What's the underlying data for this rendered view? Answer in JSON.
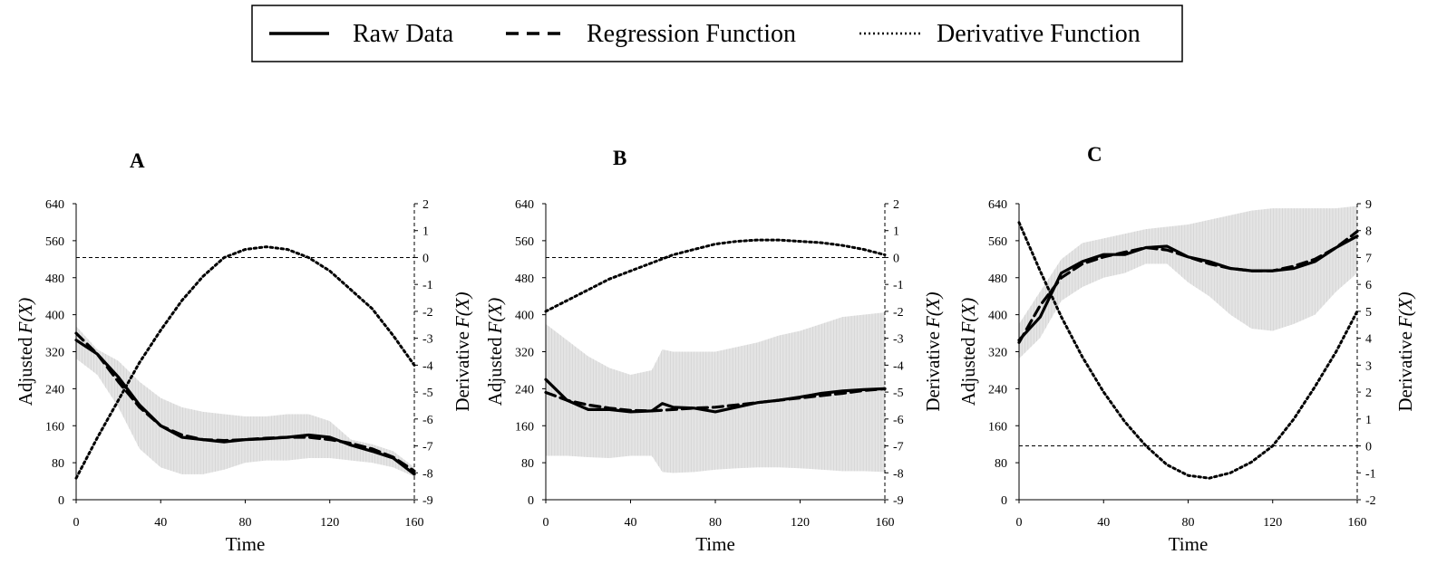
{
  "legend": {
    "entries": [
      {
        "label": "Raw Data",
        "style": "solid"
      },
      {
        "label": "Regression Function",
        "style": "dashed"
      },
      {
        "label": "Derivative Function",
        "style": "dotted"
      }
    ]
  },
  "colors": {
    "line": "#000000",
    "band": "#d4d4d4",
    "axis": "#000000"
  },
  "chart_data": [
    {
      "type": "line",
      "panel_label": "A",
      "xlabel": "Time",
      "ylabel_left": "Adjusted",
      "ylabel_left_fx": "F(X)",
      "ylabel_right": "Derivative",
      "ylabel_right_fx": "F(X)",
      "xlim": [
        0,
        160
      ],
      "ylim_left": [
        0,
        640
      ],
      "ylim_right": [
        -9,
        2
      ],
      "xticks": [
        0,
        40,
        80,
        120,
        160
      ],
      "yticks_left": [
        0,
        80,
        160,
        240,
        320,
        400,
        480,
        560,
        640
      ],
      "yticks_right": [
        -9,
        -8,
        -7,
        -6,
        -5,
        -4,
        -3,
        -2,
        -1,
        0,
        1,
        2
      ],
      "zero_line_right": 0,
      "series": [
        {
          "name": "Raw Data",
          "axis": "left",
          "x": [
            0,
            10,
            20,
            30,
            40,
            50,
            60,
            70,
            80,
            90,
            100,
            110,
            120,
            130,
            140,
            150,
            160
          ],
          "y": [
            345,
            315,
            265,
            205,
            160,
            135,
            130,
            125,
            130,
            132,
            135,
            140,
            135,
            118,
            105,
            90,
            55
          ]
        },
        {
          "name": "Regression Function",
          "axis": "left",
          "x": [
            0,
            10,
            20,
            30,
            40,
            50,
            60,
            70,
            80,
            90,
            100,
            110,
            120,
            130,
            140,
            150,
            160
          ],
          "y": [
            360,
            315,
            255,
            200,
            160,
            140,
            130,
            128,
            130,
            133,
            135,
            135,
            130,
            122,
            110,
            92,
            62
          ]
        },
        {
          "name": "Derivative Function",
          "axis": "right",
          "x": [
            0,
            10,
            20,
            30,
            40,
            50,
            60,
            70,
            80,
            90,
            100,
            110,
            120,
            130,
            140,
            150,
            160
          ],
          "y": [
            -8.2,
            -6.7,
            -5.3,
            -3.9,
            -2.7,
            -1.6,
            -0.7,
            0.0,
            0.3,
            0.4,
            0.3,
            0.0,
            -0.5,
            -1.2,
            -1.9,
            -2.9,
            -4.0
          ]
        }
      ],
      "band": {
        "x": [
          0,
          10,
          20,
          30,
          40,
          50,
          60,
          70,
          80,
          90,
          100,
          110,
          120,
          130,
          140,
          150,
          160
        ],
        "lower": [
          305,
          270,
          200,
          110,
          70,
          55,
          55,
          65,
          80,
          85,
          85,
          90,
          90,
          85,
          80,
          70,
          50
        ],
        "upper": [
          375,
          325,
          300,
          255,
          220,
          200,
          190,
          185,
          180,
          180,
          185,
          185,
          170,
          130,
          120,
          105,
          70
        ]
      }
    },
    {
      "type": "line",
      "panel_label": "B",
      "xlabel": "Time",
      "ylabel_left": "Adjusted",
      "ylabel_left_fx": "F(X)",
      "ylabel_right": "Derivative",
      "ylabel_right_fx": "F(X)",
      "xlim": [
        0,
        160
      ],
      "ylim_left": [
        0,
        640
      ],
      "ylim_right": [
        -9,
        2
      ],
      "xticks": [
        0,
        40,
        80,
        120,
        160
      ],
      "yticks_left": [
        0,
        80,
        160,
        240,
        320,
        400,
        480,
        560,
        640
      ],
      "yticks_right": [
        -9,
        -8,
        -7,
        -6,
        -5,
        -4,
        -3,
        -2,
        -1,
        0,
        1,
        2
      ],
      "zero_line_right": 0,
      "series": [
        {
          "name": "Raw Data",
          "axis": "left",
          "x": [
            0,
            10,
            20,
            30,
            40,
            50,
            55,
            60,
            70,
            80,
            90,
            100,
            110,
            120,
            130,
            140,
            150,
            160
          ],
          "y": [
            260,
            215,
            195,
            195,
            190,
            192,
            208,
            200,
            198,
            190,
            200,
            210,
            215,
            222,
            230,
            235,
            238,
            240
          ]
        },
        {
          "name": "Regression Function",
          "axis": "left",
          "x": [
            0,
            10,
            20,
            30,
            40,
            50,
            60,
            70,
            80,
            90,
            100,
            110,
            120,
            130,
            140,
            150,
            160
          ],
          "y": [
            232,
            215,
            205,
            198,
            193,
            192,
            195,
            198,
            200,
            205,
            210,
            215,
            220,
            225,
            230,
            236,
            240
          ]
        },
        {
          "name": "Derivative Function",
          "axis": "right",
          "x": [
            0,
            10,
            20,
            30,
            40,
            50,
            60,
            70,
            80,
            90,
            100,
            110,
            120,
            130,
            140,
            150,
            160
          ],
          "y": [
            -2.0,
            -1.6,
            -1.2,
            -0.8,
            -0.5,
            -0.2,
            0.1,
            0.3,
            0.5,
            0.6,
            0.65,
            0.65,
            0.6,
            0.55,
            0.45,
            0.3,
            0.1
          ]
        }
      ],
      "band": {
        "x": [
          0,
          10,
          20,
          30,
          40,
          50,
          55,
          60,
          70,
          80,
          90,
          100,
          110,
          120,
          130,
          140,
          150,
          160
        ],
        "lower": [
          95,
          95,
          92,
          90,
          95,
          95,
          60,
          58,
          60,
          65,
          68,
          70,
          70,
          68,
          65,
          62,
          62,
          60
        ],
        "upper": [
          380,
          345,
          310,
          285,
          270,
          280,
          325,
          320,
          320,
          320,
          330,
          340,
          355,
          365,
          380,
          395,
          400,
          405
        ]
      }
    },
    {
      "type": "line",
      "panel_label": "C",
      "xlabel": "Time",
      "ylabel_left": "Adjusted",
      "ylabel_left_fx": "F(X)",
      "ylabel_right": "Derivative",
      "ylabel_right_fx": "F(X)",
      "xlim": [
        0,
        160
      ],
      "ylim_left": [
        0,
        640
      ],
      "ylim_right": [
        -2,
        9
      ],
      "xticks": [
        0,
        40,
        80,
        120,
        160
      ],
      "yticks_left": [
        0,
        80,
        160,
        240,
        320,
        400,
        480,
        560,
        640
      ],
      "yticks_right": [
        -2,
        -1,
        0,
        1,
        2,
        3,
        4,
        5,
        6,
        7,
        8,
        9
      ],
      "zero_line_right": 0,
      "series": [
        {
          "name": "Raw Data",
          "axis": "left",
          "x": [
            0,
            10,
            20,
            30,
            40,
            50,
            60,
            70,
            80,
            90,
            100,
            110,
            120,
            130,
            140,
            150,
            160
          ],
          "y": [
            345,
            395,
            490,
            515,
            530,
            530,
            545,
            548,
            525,
            515,
            500,
            495,
            495,
            500,
            515,
            545,
            570
          ]
        },
        {
          "name": "Regression Function",
          "axis": "left",
          "x": [
            0,
            10,
            20,
            30,
            40,
            50,
            60,
            70,
            80,
            90,
            100,
            110,
            120,
            130,
            140,
            150,
            160
          ],
          "y": [
            340,
            420,
            480,
            510,
            525,
            535,
            545,
            540,
            525,
            510,
            500,
            495,
            495,
            505,
            520,
            545,
            580
          ]
        },
        {
          "name": "Derivative Function",
          "axis": "right",
          "x": [
            0,
            10,
            20,
            30,
            40,
            50,
            60,
            70,
            80,
            90,
            100,
            110,
            120,
            130,
            140,
            150,
            160
          ],
          "y": [
            8.3,
            6.5,
            4.8,
            3.3,
            2.0,
            0.9,
            0.0,
            -0.7,
            -1.1,
            -1.2,
            -1.0,
            -0.6,
            0.0,
            1.0,
            2.2,
            3.5,
            5.0
          ]
        }
      ],
      "band": {
        "x": [
          0,
          10,
          20,
          30,
          40,
          50,
          60,
          70,
          80,
          90,
          100,
          110,
          120,
          130,
          140,
          150,
          160
        ],
        "lower": [
          305,
          350,
          430,
          460,
          480,
          490,
          510,
          510,
          470,
          440,
          400,
          370,
          365,
          380,
          400,
          450,
          490
        ],
        "upper": [
          380,
          450,
          520,
          555,
          565,
          575,
          585,
          590,
          595,
          605,
          615,
          625,
          630,
          630,
          630,
          630,
          635
        ]
      }
    }
  ]
}
